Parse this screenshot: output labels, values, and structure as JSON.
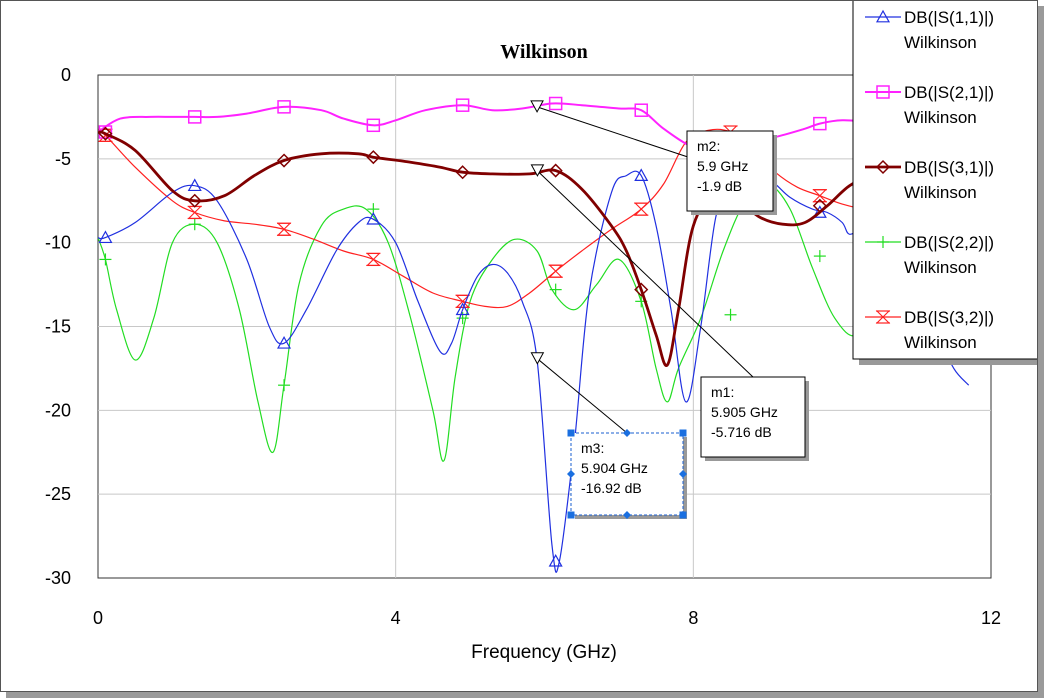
{
  "chart_data": {
    "type": "line",
    "title": "Wilkinson",
    "xlabel": "Frequency (GHz)",
    "ylabel": "",
    "xlim": [
      0,
      12
    ],
    "ylim": [
      -30,
      0
    ],
    "x_ticks": [
      "0",
      "4",
      "8",
      "12"
    ],
    "y_ticks": [
      "0",
      "-5",
      "-10",
      "-15",
      "-20",
      "-25",
      "-30"
    ],
    "grid": true,
    "legend_position": "top-right",
    "series": [
      {
        "name": "DB(|S(1,1)|)",
        "source": "Wilkinson",
        "color": "#2030e0",
        "marker": "triangle",
        "x": [
          0,
          0.1,
          0.5,
          1.0,
          1.3,
          1.6,
          2.0,
          2.3,
          2.5,
          2.8,
          3.2,
          3.5,
          3.7,
          4.0,
          4.3,
          4.6,
          4.75,
          4.9,
          5.1,
          5.3,
          5.5,
          5.7,
          5.9,
          6.1,
          6.2,
          6.4,
          6.6,
          6.9,
          7.1,
          7.3,
          7.5,
          7.7,
          7.9,
          8.1,
          8.3,
          8.5,
          8.7,
          8.9,
          9.1,
          9.3,
          9.6,
          9.8,
          10.0,
          10.1,
          10.3,
          10.5,
          10.8,
          11.1,
          11.3,
          11.5,
          11.7
        ],
        "y": [
          -9.7,
          -9.7,
          -8.8,
          -7.0,
          -6.6,
          -7.5,
          -11.0,
          -15.0,
          -16.0,
          -14.0,
          -10.5,
          -8.8,
          -8.6,
          -10.0,
          -13.5,
          -16.5,
          -16.0,
          -14.0,
          -12.0,
          -11.3,
          -11.8,
          -13.5,
          -17.0,
          -28.0,
          -29.0,
          -22.0,
          -13.0,
          -7.0,
          -6.0,
          -6.0,
          -9.0,
          -14.0,
          -19.5,
          -15.0,
          -8.5,
          -6.5,
          -5.8,
          -5.9,
          -6.5,
          -7.3,
          -8.0,
          -8.2,
          -8.8,
          -9.5,
          -9.0,
          -8.5,
          -9.5,
          -12.5,
          -15.5,
          -17.5,
          -18.5
        ],
        "marker_x": [
          0.1,
          1.3,
          2.5,
          3.7,
          4.9,
          6.15,
          7.3,
          8.5,
          9.7,
          10.9
        ],
        "marker_y": [
          -9.7,
          -6.6,
          -16.0,
          -8.6,
          -14.0,
          -29.0,
          -6.0,
          -6.5,
          -8.2,
          -8.5
        ]
      },
      {
        "name": "DB(|S(2,1)|)",
        "source": "Wilkinson",
        "color": "#ff22ff",
        "marker": "square",
        "x": [
          0,
          0.3,
          0.7,
          1.0,
          1.3,
          1.6,
          2.0,
          2.5,
          3.0,
          3.3,
          3.7,
          4.0,
          4.4,
          4.9,
          5.3,
          5.7,
          6.1,
          6.5,
          7.0,
          7.3,
          7.6,
          8.0,
          8.3,
          8.7,
          9.1,
          9.5,
          9.7,
          10.0,
          10.3,
          10.6,
          10.9
        ],
        "y": [
          -3.4,
          -2.6,
          -2.5,
          -2.5,
          -2.5,
          -2.5,
          -2.3,
          -1.9,
          -2.1,
          -2.6,
          -3.0,
          -2.7,
          -2.1,
          -1.8,
          -2.1,
          -2.0,
          -1.7,
          -1.8,
          -2.0,
          -2.1,
          -3.2,
          -4.3,
          -4.2,
          -4.0,
          -3.7,
          -3.2,
          -2.9,
          -2.7,
          -2.8,
          -3.0,
          -3.1
        ],
        "marker_x": [
          0.1,
          1.3,
          2.5,
          3.7,
          4.9,
          6.15,
          7.3,
          8.5,
          9.7,
          10.9
        ],
        "marker_y": [
          -3.4,
          -2.5,
          -1.9,
          -3.0,
          -1.8,
          -1.7,
          -2.1,
          -4.2,
          -2.9,
          -3.1
        ]
      },
      {
        "name": "DB(|S(3,1)|)",
        "source": "Wilkinson",
        "color": "#800000",
        "marker": "diamond",
        "x": [
          0,
          0.1,
          0.5,
          1.0,
          1.3,
          1.7,
          2.1,
          2.5,
          3.0,
          3.5,
          3.7,
          4.2,
          4.6,
          4.9,
          5.3,
          5.8,
          6.15,
          6.5,
          6.9,
          7.1,
          7.3,
          7.5,
          7.65,
          7.8,
          8.0,
          8.3,
          8.6,
          8.9,
          9.2,
          9.5,
          9.8,
          10.1,
          10.4,
          10.6
        ],
        "y": [
          -3.4,
          -3.5,
          -4.5,
          -6.9,
          -7.5,
          -7.2,
          -6.0,
          -5.1,
          -4.7,
          -4.7,
          -4.9,
          -5.2,
          -5.5,
          -5.8,
          -5.9,
          -5.9,
          -5.7,
          -6.8,
          -9.0,
          -10.5,
          -12.8,
          -15.5,
          -17.3,
          -14.0,
          -9.0,
          -7.0,
          -7.5,
          -8.5,
          -8.9,
          -8.8,
          -7.8,
          -6.6,
          -6.0,
          -5.9
        ],
        "marker_x": [
          0.1,
          1.3,
          2.5,
          3.7,
          4.9,
          6.15,
          7.3,
          8.5,
          9.7,
          10.9
        ],
        "marker_y": [
          -3.5,
          -7.5,
          -5.1,
          -4.9,
          -5.8,
          -5.7,
          -12.8,
          -7.3,
          -7.8,
          -6.0
        ]
      },
      {
        "name": "DB(|S(2,2)|)",
        "source": "Wilkinson",
        "color": "#22dd22",
        "marker": "plus",
        "x": [
          0,
          0.1,
          0.25,
          0.5,
          0.75,
          1.0,
          1.3,
          1.6,
          1.9,
          2.15,
          2.35,
          2.5,
          2.7,
          3.0,
          3.3,
          3.6,
          3.9,
          4.2,
          4.5,
          4.65,
          4.8,
          5.0,
          5.3,
          5.6,
          5.9,
          6.1,
          6.4,
          6.7,
          7.0,
          7.3,
          7.5,
          7.65,
          7.8,
          8.1,
          8.4,
          8.7,
          9.0,
          9.3,
          9.6,
          9.9,
          10.2,
          10.5,
          10.8,
          11.1,
          11.3,
          11.5
        ],
        "y": [
          -9.7,
          -11.0,
          -14.0,
          -17.0,
          -14.5,
          -10.0,
          -8.9,
          -10.0,
          -14.0,
          -19.5,
          -22.5,
          -18.5,
          -12.5,
          -9.0,
          -8.0,
          -8.0,
          -10.0,
          -14.5,
          -20.0,
          -23.0,
          -18.0,
          -13.5,
          -11.0,
          -9.8,
          -10.5,
          -12.8,
          -14.0,
          -12.5,
          -11.0,
          -13.5,
          -17.5,
          -19.5,
          -17.5,
          -14.5,
          -10.5,
          -7.5,
          -6.5,
          -8.0,
          -11.5,
          -14.5,
          -15.5,
          -13.0,
          -10.0,
          -11.0,
          -14.0,
          -16.5
        ],
        "marker_x": [
          0.1,
          1.3,
          2.5,
          3.7,
          4.9,
          6.15,
          7.3,
          8.5,
          9.7,
          10.9
        ],
        "marker_y": [
          -11.0,
          -8.9,
          -18.5,
          -8.0,
          -14.5,
          -12.8,
          -13.5,
          -14.3,
          -10.8,
          -10.5
        ]
      },
      {
        "name": "DB(|S(3,2)|)",
        "source": "Wilkinson",
        "color": "#ff2020",
        "marker": "hourglass",
        "x": [
          0,
          0.1,
          0.5,
          1.0,
          1.3,
          1.7,
          2.1,
          2.5,
          2.9,
          3.3,
          3.7,
          4.1,
          4.5,
          4.9,
          5.2,
          5.5,
          5.8,
          6.15,
          6.5,
          6.9,
          7.3,
          7.6,
          7.9,
          8.2,
          8.5,
          8.8,
          9.1,
          9.4,
          9.7,
          10.0,
          10.4,
          10.9
        ],
        "y": [
          -3.4,
          -3.6,
          -5.5,
          -7.5,
          -8.2,
          -8.7,
          -8.9,
          -9.2,
          -9.8,
          -10.5,
          -11.0,
          -12.0,
          -13.0,
          -13.5,
          -13.8,
          -13.8,
          -13.0,
          -11.7,
          -10.5,
          -9.2,
          -8.0,
          -6.5,
          -4.0,
          -3.3,
          -3.4,
          -4.5,
          -5.8,
          -6.7,
          -7.2,
          -7.7,
          -8.1,
          -8.4
        ],
        "marker_x": [
          0.1,
          1.3,
          2.5,
          3.7,
          4.9,
          6.15,
          7.3,
          8.5,
          9.7,
          10.9
        ],
        "marker_y": [
          -3.6,
          -8.2,
          -9.2,
          -11.0,
          -13.5,
          -11.7,
          -8.0,
          -3.4,
          -7.2,
          -8.4
        ]
      }
    ],
    "markers": [
      {
        "label": "m2:",
        "freq": "5.9 GHz",
        "value": "-1.9 dB",
        "x": 5.9,
        "y": -1.9,
        "selected": false
      },
      {
        "label": "m1:",
        "freq": "5.905 GHz",
        "value": "-5.716 dB",
        "x": 5.905,
        "y": -5.716,
        "selected": false
      },
      {
        "label": "m3:",
        "freq": "5.904 GHz",
        "value": "-16.92 dB",
        "x": 5.904,
        "y": -16.92,
        "selected": true
      }
    ]
  }
}
